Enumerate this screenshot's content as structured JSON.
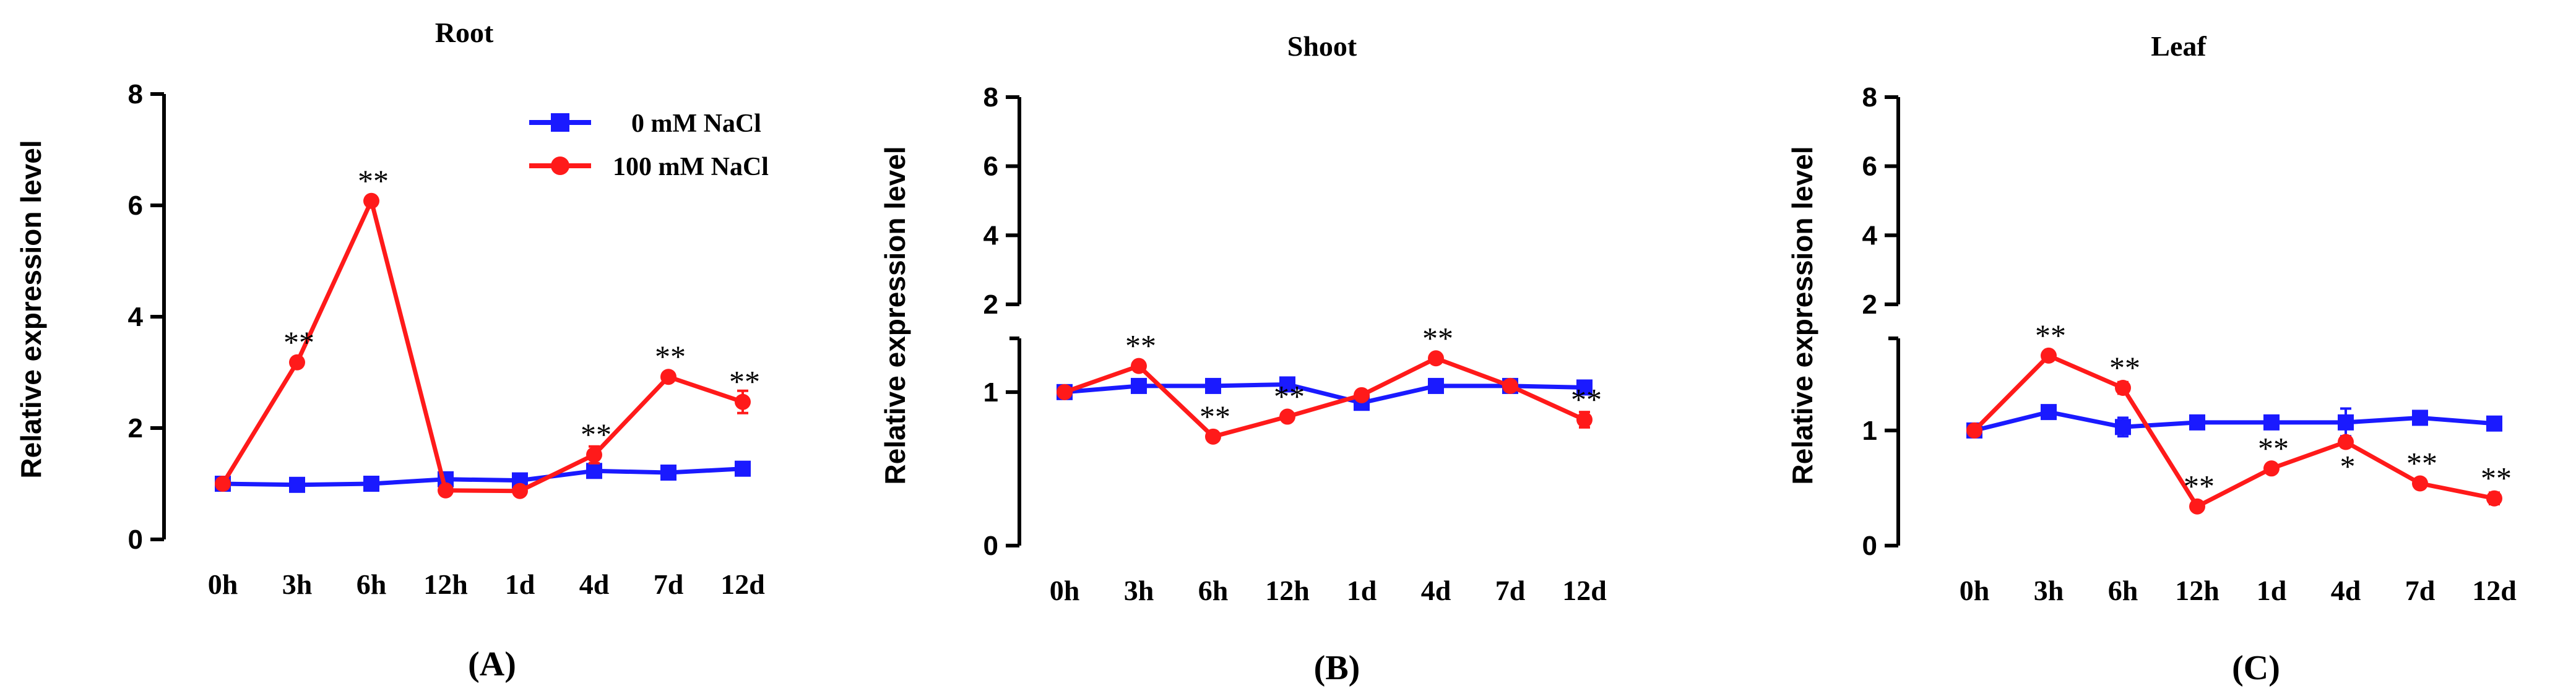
{
  "colors": {
    "control": "#1a1aff",
    "treatment": "#ff1a1a",
    "axis": "#000000"
  },
  "chart_data": [
    {
      "type": "line",
      "title": "Root",
      "panel_label": "(A)",
      "ylabel": "Relative expression level",
      "categories": [
        "0h",
        "3h",
        "6h",
        "12h",
        "1d",
        "4d",
        "7d",
        "12d"
      ],
      "ylim": [
        0,
        8
      ],
      "yticks": [
        "0",
        "2",
        "4",
        "6",
        "8"
      ],
      "axis_break": false,
      "legend": {
        "placement": "top-right"
      },
      "series": [
        {
          "name": "0 mM NaCl",
          "color": "#1a1aff",
          "marker": "square",
          "values": [
            1.0,
            0.98,
            1.0,
            1.08,
            1.06,
            1.23,
            1.2,
            1.27
          ],
          "errors": [
            0.04,
            0.04,
            0.1,
            0.04,
            0.04,
            0.06,
            0.04,
            0.05
          ]
        },
        {
          "name": "100 mM NaCl",
          "color": "#ff1a1a",
          "marker": "circle",
          "values": [
            1.0,
            3.18,
            6.08,
            0.88,
            0.87,
            1.52,
            2.92,
            2.47
          ],
          "errors": [
            0.04,
            0.05,
            0.06,
            0.04,
            0.04,
            0.15,
            0.06,
            0.2
          ]
        }
      ],
      "annotations": [
        {
          "index": 1,
          "value": 3.18,
          "text": "**"
        },
        {
          "index": 2,
          "value": 6.08,
          "text": "**"
        },
        {
          "index": 5,
          "value": 1.52,
          "text": "**"
        },
        {
          "index": 6,
          "value": 2.92,
          "text": "**"
        },
        {
          "index": 7,
          "value": 2.47,
          "text": "**"
        }
      ]
    },
    {
      "type": "line",
      "title": "Shoot",
      "panel_label": "(B)",
      "ylabel": "Relative expression level",
      "categories": [
        "0h",
        "3h",
        "6h",
        "12h",
        "1d",
        "4d",
        "7d",
        "12d"
      ],
      "ylim_lower": [
        0,
        1.35
      ],
      "ylim_upper": [
        2,
        8
      ],
      "yticks_lower": [
        "0",
        "1"
      ],
      "yticks_upper": [
        "2",
        "4",
        "6",
        "8"
      ],
      "axis_break": true,
      "series": [
        {
          "name": "0 mM NaCl",
          "color": "#1a1aff",
          "marker": "square",
          "values": [
            1.0,
            1.04,
            1.04,
            1.05,
            0.93,
            1.04,
            1.04,
            1.03
          ],
          "errors": [
            0.02,
            0.02,
            0.02,
            0.02,
            0.02,
            0.02,
            0.02,
            0.02
          ]
        },
        {
          "name": "100 mM NaCl",
          "color": "#ff1a1a",
          "marker": "circle",
          "values": [
            1.0,
            1.17,
            0.71,
            0.84,
            0.98,
            1.22,
            1.04,
            0.82
          ],
          "errors": [
            0.02,
            0.02,
            0.02,
            0.02,
            0.02,
            0.02,
            0.02,
            0.05
          ]
        }
      ],
      "annotations": [
        {
          "index": 1,
          "value": 1.17,
          "text": "**"
        },
        {
          "index": 2,
          "value": 0.71,
          "text": "**"
        },
        {
          "index": 3,
          "value": 0.84,
          "text": "**"
        },
        {
          "index": 5,
          "value": 1.22,
          "text": "**"
        },
        {
          "index": 7,
          "value": 0.82,
          "text": "**"
        }
      ]
    },
    {
      "type": "line",
      "title": "Leaf",
      "panel_label": "(C)",
      "ylabel": "Relative expression level",
      "categories": [
        "0h",
        "3h",
        "6h",
        "12h",
        "1d",
        "4d",
        "7d",
        "12d"
      ],
      "ylim_lower": [
        0,
        1.8
      ],
      "ylim_upper": [
        2,
        8
      ],
      "yticks_lower": [
        "0",
        "1"
      ],
      "yticks_upper": [
        "2",
        "4",
        "6",
        "8"
      ],
      "axis_break": true,
      "series": [
        {
          "name": "0 mM NaCl",
          "color": "#1a1aff",
          "marker": "square",
          "values": [
            1.0,
            1.16,
            1.03,
            1.07,
            1.07,
            1.07,
            1.11,
            1.06
          ],
          "errors": [
            0.02,
            0.03,
            0.08,
            0.04,
            0.03,
            0.12,
            0.03,
            0.03
          ]
        },
        {
          "name": "100 mM NaCl",
          "color": "#ff1a1a",
          "marker": "circle",
          "values": [
            1.0,
            1.65,
            1.37,
            0.34,
            0.67,
            0.9,
            0.54,
            0.41
          ],
          "errors": [
            0.02,
            0.03,
            0.05,
            0.03,
            0.03,
            0.04,
            0.03,
            0.05
          ]
        }
      ],
      "annotations": [
        {
          "index": 1,
          "value": 1.65,
          "text": "**",
          "pos": "above"
        },
        {
          "index": 2,
          "value": 1.37,
          "text": "**",
          "pos": "above"
        },
        {
          "index": 3,
          "value": 0.34,
          "text": "**",
          "pos": "above"
        },
        {
          "index": 4,
          "value": 0.67,
          "text": "**",
          "pos": "above"
        },
        {
          "index": 5,
          "value": 0.9,
          "text": "*",
          "pos": "below"
        },
        {
          "index": 6,
          "value": 0.54,
          "text": "**",
          "pos": "above"
        },
        {
          "index": 7,
          "value": 0.41,
          "text": "**",
          "pos": "above"
        }
      ]
    }
  ]
}
